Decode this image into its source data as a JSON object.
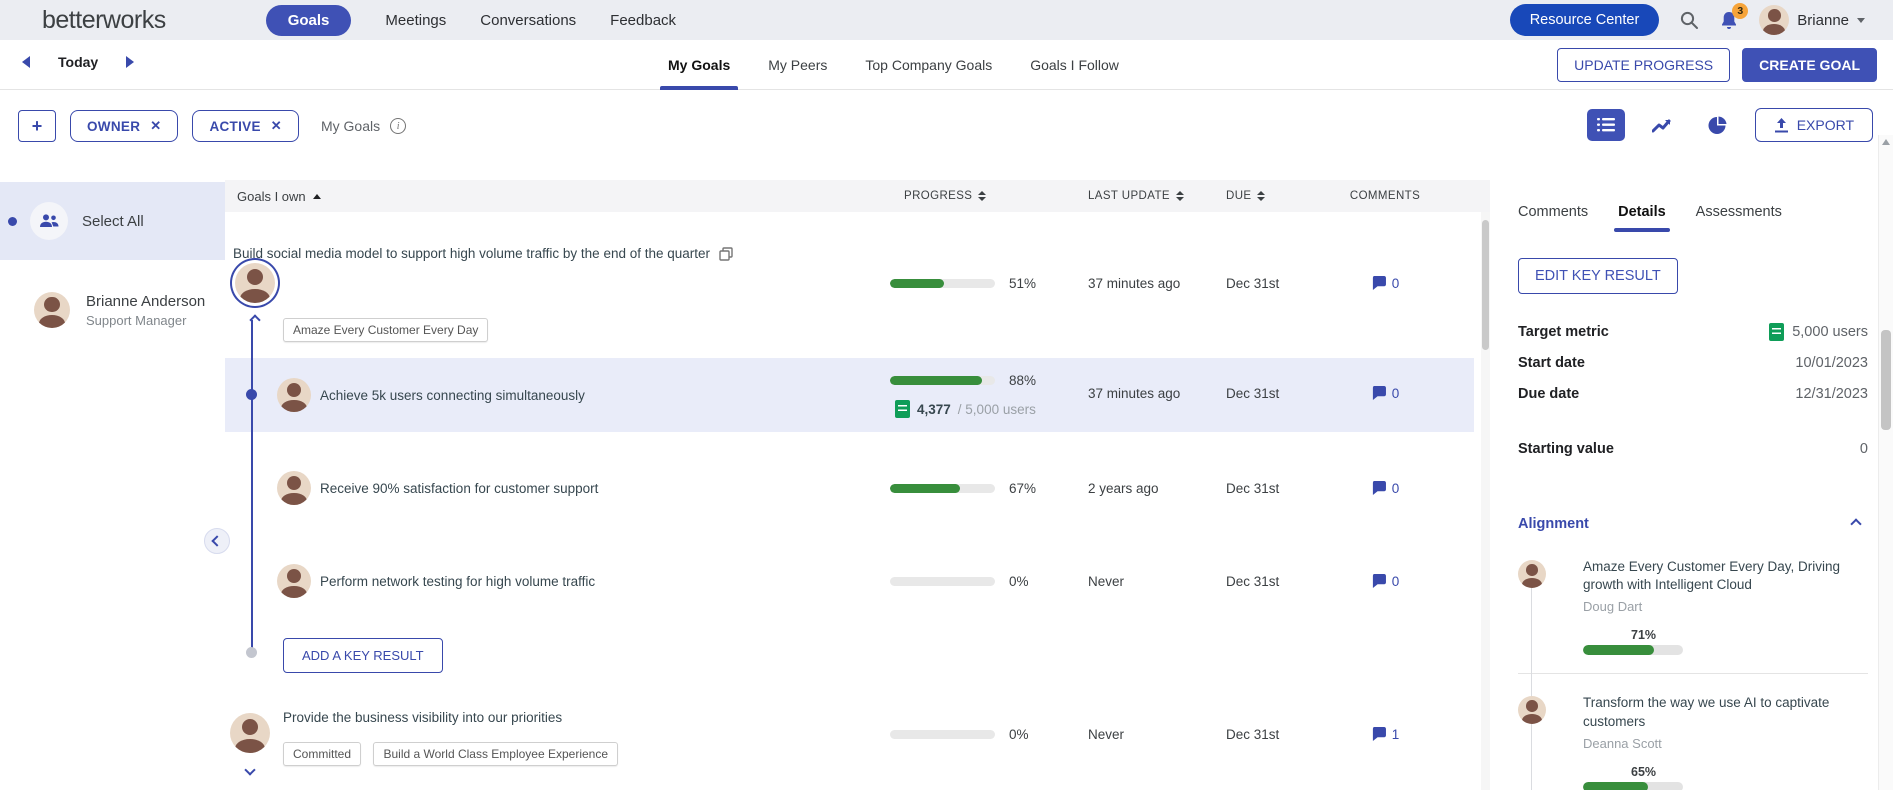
{
  "brand": {
    "logo": "betterworks"
  },
  "topnav": {
    "items": [
      {
        "label": "Goals"
      },
      {
        "label": "Meetings"
      },
      {
        "label": "Conversations"
      },
      {
        "label": "Feedback"
      }
    ],
    "resource_center_label": "Resource Center",
    "notification_count": "3",
    "user_name": "Brianne"
  },
  "datebar": {
    "today_label": "Today"
  },
  "goal_tabs": {
    "tabs": [
      {
        "label": "My Goals"
      },
      {
        "label": "My Peers"
      },
      {
        "label": "Top Company Goals"
      },
      {
        "label": "Goals I Follow"
      }
    ],
    "active_tab": "My Goals"
  },
  "actions": {
    "update_progress": "UPDATE PROGRESS",
    "create_goal": "CREATE GOAL",
    "export_label": "EXPORT"
  },
  "filters": {
    "chip1": "OWNER",
    "chip2": "ACTIVE",
    "view_label": "My Goals"
  },
  "icons": {
    "plus": "+",
    "close": "✕",
    "info": "i"
  },
  "sidebar": {
    "select_all": "Select All",
    "user": {
      "name": "Brianne Anderson",
      "role": "Support Manager"
    }
  },
  "table": {
    "header": {
      "goals": "Goals I own",
      "progress": "PROGRESS",
      "last_update": "LAST UPDATE",
      "due": "DUE",
      "comments": "COMMENTS"
    },
    "goal1": {
      "title": "Build social media model to support high volume traffic by the end of the quarter",
      "pct": 51,
      "pct_label": "51%",
      "last_update": "37 minutes ago",
      "due": "Dec 31st",
      "comments": "0",
      "tag": "Amaze Every Customer Every Day"
    },
    "kr1": {
      "title": "Achieve 5k users connecting simultaneously",
      "pct": 88,
      "pct_label": "88%",
      "metric_value": "4,377",
      "metric_total": "/ 5,000 users",
      "last_update": "37 minutes ago",
      "due": "Dec 31st",
      "comments": "0"
    },
    "kr2": {
      "title": "Receive 90% satisfaction for customer support",
      "pct": 67,
      "pct_label": "67%",
      "last_update": "2 years ago",
      "due": "Dec 31st",
      "comments": "0"
    },
    "kr3": {
      "title": "Perform network testing for high volume traffic",
      "pct": 0,
      "pct_label": "0%",
      "last_update": "Never",
      "due": "Dec 31st",
      "comments": "0"
    },
    "add_key_result_label": "ADD A KEY RESULT",
    "goal2": {
      "title": "Provide the business visibility into our priorities",
      "pct": 0,
      "pct_label": "0%",
      "last_update": "Never",
      "due": "Dec 31st",
      "comments": "1",
      "tag1": "Committed",
      "tag2": "Build a World Class Employee Experience"
    }
  },
  "details_panel": {
    "tabs": [
      {
        "label": "Comments"
      },
      {
        "label": "Details"
      },
      {
        "label": "Assessments"
      }
    ],
    "active_tab": "Details",
    "edit_button": "EDIT KEY RESULT",
    "target_metric_label": "Target metric",
    "target_metric_value": "5,000 users",
    "start_date_label": "Start date",
    "start_date_value": "10/01/2023",
    "due_date_label": "Due date",
    "due_date_value": "12/31/2023",
    "starting_value_label": "Starting value",
    "starting_value": "0",
    "alignment": {
      "title": "Alignment",
      "items": [
        {
          "title": "Amaze Every Customer Every Day, Driving growth with Intelligent Cloud",
          "owner": "Doug Dart",
          "pct": 71,
          "pct_label": "71%"
        },
        {
          "title": "Transform the way we use AI to captivate customers",
          "owner": "Deanna Scott",
          "pct": 65,
          "pct_label": "65%"
        }
      ]
    }
  },
  "colors": {
    "primary": "#3f51b5",
    "resource_blue": "#1848b9",
    "progress_green": "#388e3c",
    "badge_orange": "#f6a43a",
    "selected_row": "#e9ecf9"
  }
}
